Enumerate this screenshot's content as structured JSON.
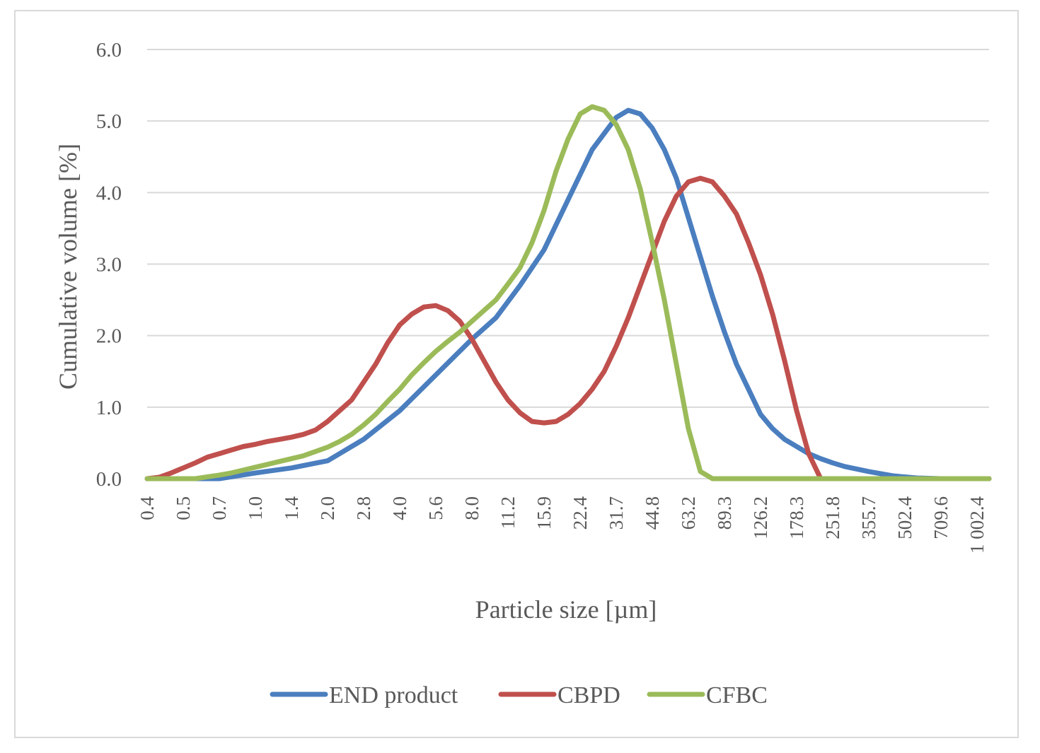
{
  "chart_data": {
    "type": "line",
    "title": "",
    "xlabel": "Particle size [µm]",
    "ylabel": "Cumulative volume [%]",
    "ylim": [
      0,
      6
    ],
    "yticks": [
      "0.0",
      "1.0",
      "2.0",
      "3.0",
      "4.0",
      "5.0",
      "6.0"
    ],
    "grid": true,
    "legend_position": "bottom",
    "x_index_range": [
      0,
      70
    ],
    "x_tick_labels": [
      {
        "i": 0,
        "label": "0.4"
      },
      {
        "i": 3,
        "label": "0.5"
      },
      {
        "i": 6,
        "label": "0.7"
      },
      {
        "i": 9,
        "label": "1.0"
      },
      {
        "i": 12,
        "label": "1.4"
      },
      {
        "i": 15,
        "label": "2.0"
      },
      {
        "i": 18,
        "label": "2.8"
      },
      {
        "i": 21,
        "label": "4.0"
      },
      {
        "i": 24,
        "label": "5.6"
      },
      {
        "i": 27,
        "label": "8.0"
      },
      {
        "i": 30,
        "label": "11.2"
      },
      {
        "i": 33,
        "label": "15.9"
      },
      {
        "i": 36,
        "label": "22.4"
      },
      {
        "i": 39,
        "label": "31.7"
      },
      {
        "i": 42,
        "label": "44.8"
      },
      {
        "i": 45,
        "label": "63.2"
      },
      {
        "i": 48,
        "label": "89.3"
      },
      {
        "i": 51,
        "label": "126.2"
      },
      {
        "i": 54,
        "label": "178.3"
      },
      {
        "i": 57,
        "label": "251.8"
      },
      {
        "i": 60,
        "label": "355.7"
      },
      {
        "i": 63,
        "label": "502.4"
      },
      {
        "i": 66,
        "label": "709.6"
      },
      {
        "i": 69,
        "label": "1 002.4"
      }
    ],
    "series": [
      {
        "name": "END product",
        "color": "#4a7ebf",
        "points": [
          [
            0,
            0
          ],
          [
            3,
            0
          ],
          [
            6,
            0
          ],
          [
            9,
            0.08
          ],
          [
            12,
            0.15
          ],
          [
            15,
            0.25
          ],
          [
            18,
            0.55
          ],
          [
            21,
            0.95
          ],
          [
            24,
            1.45
          ],
          [
            27,
            1.95
          ],
          [
            29,
            2.25
          ],
          [
            31,
            2.7
          ],
          [
            33,
            3.2
          ],
          [
            35,
            3.9
          ],
          [
            37,
            4.6
          ],
          [
            39,
            5.05
          ],
          [
            40,
            5.15
          ],
          [
            41,
            5.1
          ],
          [
            42,
            4.9
          ],
          [
            43,
            4.6
          ],
          [
            44,
            4.2
          ],
          [
            45,
            3.65
          ],
          [
            46,
            3.1
          ],
          [
            47,
            2.55
          ],
          [
            48,
            2.05
          ],
          [
            49,
            1.6
          ],
          [
            50,
            1.25
          ],
          [
            51,
            0.9
          ],
          [
            52,
            0.7
          ],
          [
            53,
            0.55
          ],
          [
            54,
            0.45
          ],
          [
            55,
            0.35
          ],
          [
            56,
            0.28
          ],
          [
            57,
            0.22
          ],
          [
            58,
            0.17
          ],
          [
            60,
            0.1
          ],
          [
            62,
            0.04
          ],
          [
            64,
            0.01
          ],
          [
            66,
            0
          ],
          [
            70,
            0
          ]
        ]
      },
      {
        "name": "CBPD",
        "color": "#c0504d",
        "points": [
          [
            0,
            0
          ],
          [
            1,
            0.02
          ],
          [
            2,
            0.08
          ],
          [
            3,
            0.15
          ],
          [
            4,
            0.22
          ],
          [
            5,
            0.3
          ],
          [
            6,
            0.35
          ],
          [
            7,
            0.4
          ],
          [
            8,
            0.45
          ],
          [
            9,
            0.48
          ],
          [
            10,
            0.52
          ],
          [
            11,
            0.55
          ],
          [
            12,
            0.58
          ],
          [
            13,
            0.62
          ],
          [
            14,
            0.68
          ],
          [
            15,
            0.8
          ],
          [
            16,
            0.95
          ],
          [
            17,
            1.1
          ],
          [
            18,
            1.35
          ],
          [
            19,
            1.6
          ],
          [
            20,
            1.9
          ],
          [
            21,
            2.15
          ],
          [
            22,
            2.3
          ],
          [
            23,
            2.4
          ],
          [
            24,
            2.42
          ],
          [
            25,
            2.35
          ],
          [
            26,
            2.2
          ],
          [
            27,
            1.95
          ],
          [
            28,
            1.65
          ],
          [
            29,
            1.35
          ],
          [
            30,
            1.1
          ],
          [
            31,
            0.92
          ],
          [
            32,
            0.8
          ],
          [
            33,
            0.78
          ],
          [
            34,
            0.8
          ],
          [
            35,
            0.9
          ],
          [
            36,
            1.05
          ],
          [
            37,
            1.25
          ],
          [
            38,
            1.5
          ],
          [
            39,
            1.85
          ],
          [
            40,
            2.25
          ],
          [
            41,
            2.7
          ],
          [
            42,
            3.15
          ],
          [
            43,
            3.6
          ],
          [
            44,
            3.95
          ],
          [
            45,
            4.15
          ],
          [
            46,
            4.2
          ],
          [
            47,
            4.15
          ],
          [
            48,
            3.95
          ],
          [
            49,
            3.7
          ],
          [
            50,
            3.3
          ],
          [
            51,
            2.85
          ],
          [
            52,
            2.3
          ],
          [
            53,
            1.65
          ],
          [
            54,
            0.95
          ],
          [
            55,
            0.35
          ],
          [
            56,
            0
          ],
          [
            70,
            0
          ]
        ]
      },
      {
        "name": "CFBC",
        "color": "#9bbb59",
        "points": [
          [
            0,
            0
          ],
          [
            2,
            0
          ],
          [
            4,
            0
          ],
          [
            6,
            0.05
          ],
          [
            7,
            0.08
          ],
          [
            8,
            0.12
          ],
          [
            9,
            0.16
          ],
          [
            10,
            0.2
          ],
          [
            11,
            0.24
          ],
          [
            12,
            0.28
          ],
          [
            13,
            0.32
          ],
          [
            14,
            0.38
          ],
          [
            15,
            0.44
          ],
          [
            16,
            0.52
          ],
          [
            17,
            0.62
          ],
          [
            18,
            0.75
          ],
          [
            19,
            0.9
          ],
          [
            20,
            1.08
          ],
          [
            21,
            1.25
          ],
          [
            22,
            1.45
          ],
          [
            23,
            1.62
          ],
          [
            24,
            1.78
          ],
          [
            25,
            1.92
          ],
          [
            26,
            2.05
          ],
          [
            27,
            2.2
          ],
          [
            28,
            2.35
          ],
          [
            29,
            2.5
          ],
          [
            30,
            2.72
          ],
          [
            31,
            2.95
          ],
          [
            32,
            3.3
          ],
          [
            33,
            3.75
          ],
          [
            34,
            4.3
          ],
          [
            35,
            4.75
          ],
          [
            36,
            5.1
          ],
          [
            37,
            5.2
          ],
          [
            38,
            5.15
          ],
          [
            39,
            4.95
          ],
          [
            40,
            4.6
          ],
          [
            41,
            4.05
          ],
          [
            42,
            3.3
          ],
          [
            43,
            2.5
          ],
          [
            44,
            1.6
          ],
          [
            45,
            0.7
          ],
          [
            46,
            0.1
          ],
          [
            47,
            0
          ],
          [
            70,
            0
          ]
        ]
      }
    ]
  }
}
